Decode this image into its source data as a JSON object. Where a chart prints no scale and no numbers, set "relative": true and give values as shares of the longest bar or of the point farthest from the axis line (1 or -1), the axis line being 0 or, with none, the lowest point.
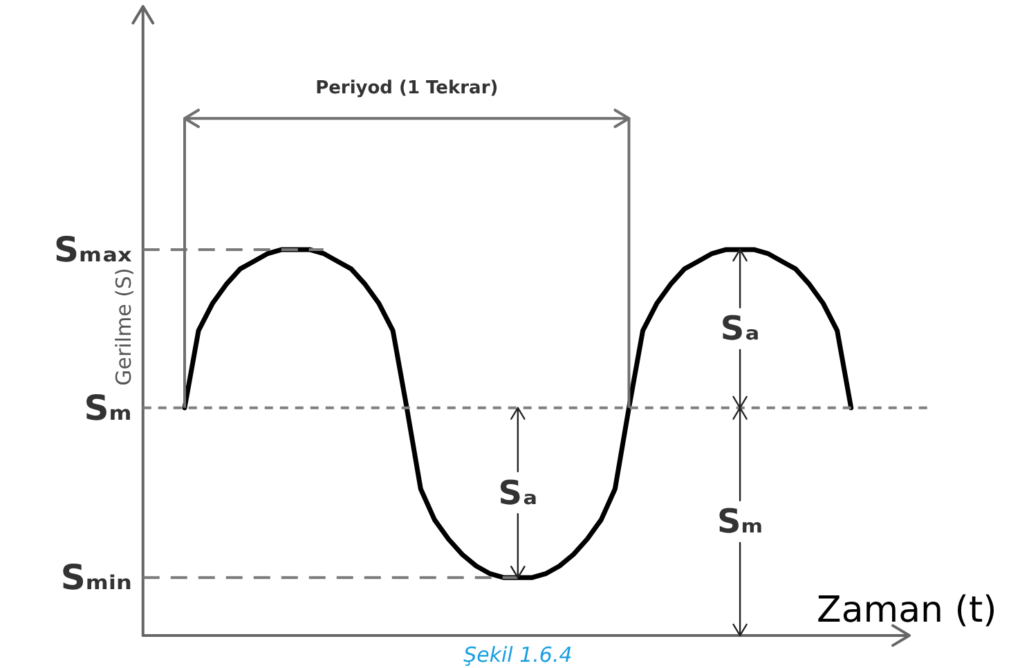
{
  "chart_data": {
    "type": "line",
    "ylabel": "Gerilme (S)",
    "xlabel": "Zaman (t)",
    "relative": true,
    "line_style": "solid",
    "categories": [
      null,
      null,
      null,
      null,
      null,
      null,
      null,
      null,
      null,
      null,
      null,
      null,
      null,
      null,
      null,
      null,
      null,
      null,
      null,
      null,
      null,
      null,
      null,
      null,
      null,
      null,
      null,
      null,
      null,
      null,
      null,
      null,
      null,
      null,
      null,
      null,
      null,
      null,
      null,
      null,
      null,
      null,
      null,
      null,
      null,
      null,
      null,
      null,
      null
    ],
    "series": [
      {
        "color": "#000000",
        "values": [
          0.59,
          0.79,
          0.86,
          0.91,
          0.95,
          0.97,
          0.99,
          1.0,
          1.0,
          1.0,
          0.99,
          0.97,
          0.95,
          0.91,
          0.86,
          0.79,
          0.59,
          0.38,
          0.3,
          0.25,
          0.21,
          0.18,
          0.16,
          0.15,
          0.15,
          0.15,
          0.16,
          0.18,
          0.21,
          0.25,
          0.3,
          0.38,
          0.59,
          0.79,
          0.86,
          0.91,
          0.95,
          0.97,
          0.99,
          1.0,
          1.0,
          1.0,
          0.99,
          0.97,
          0.95,
          0.91,
          0.86,
          0.79,
          0.59
        ]
      }
    ],
    "ref_lines": [
      {
        "axis": "y",
        "value": 1.0,
        "label": "Sₘₐₓ",
        "line_style": "dashed",
        "color": "#7a7a7a"
      },
      {
        "axis": "y",
        "value": 0.59,
        "label": "Sₘ",
        "line_style": "dotted",
        "color": "#808080"
      },
      {
        "axis": "y",
        "value": 0.15,
        "label": "Sₘᵢₙ",
        "line_style": "dashed",
        "color": "#7a7a7a"
      }
    ],
    "annotations": [
      "Periyod (1 Tekrar)",
      "Sₐ",
      "Sₐ",
      "Sₘ",
      "Şekil 1.6.4"
    ]
  }
}
